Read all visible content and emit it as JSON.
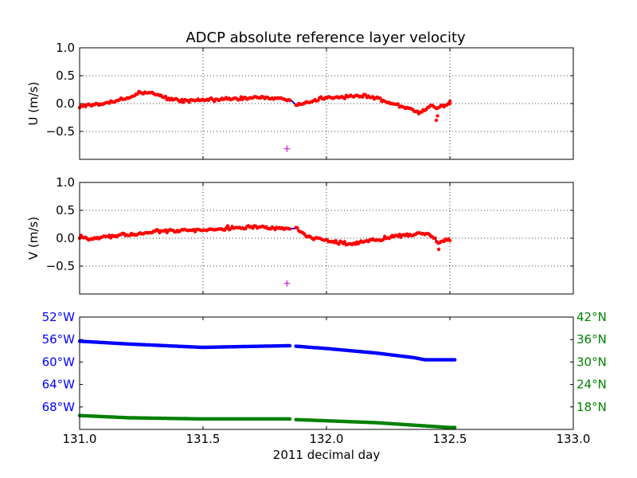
{
  "title": "ADCP absolute reference layer velocity",
  "colors": {
    "line": "#0000ff",
    "dots": "#ff0000",
    "marker": "#bf00bf",
    "lon": "#0000ff",
    "lat": "#008000",
    "grid": "#000000"
  },
  "chart_data": [
    {
      "id": "u",
      "type": "scatter",
      "ylabel": "U (m/s)",
      "xlim": [
        131.0,
        133.0
      ],
      "ylim": [
        -1.0,
        1.0
      ],
      "xticks": [
        131.0,
        131.5,
        132.0,
        132.5,
        133.0
      ],
      "yticks": [
        1.0,
        0.5,
        0.0,
        -0.5
      ],
      "ytick_labels": [
        "1.0",
        "0.5",
        "0.0",
        "−0.5"
      ],
      "grid": true,
      "series": [
        {
          "style": "line+dots",
          "x": [
            131.0,
            131.05,
            131.1,
            131.15,
            131.2,
            131.25,
            131.3,
            131.35,
            131.4,
            131.45,
            131.5,
            131.55,
            131.6,
            131.65,
            131.7,
            131.75,
            131.8,
            131.85,
            131.88,
            131.95,
            132.0,
            132.05,
            132.1,
            132.15,
            132.2,
            132.25,
            132.3,
            132.35,
            132.38,
            132.42,
            132.45,
            132.5
          ],
          "y": [
            -0.04,
            -0.03,
            0.0,
            0.05,
            0.1,
            0.21,
            0.18,
            0.1,
            0.06,
            0.05,
            0.06,
            0.07,
            0.08,
            0.09,
            0.1,
            0.1,
            0.09,
            0.07,
            -0.02,
            0.05,
            0.12,
            0.1,
            0.14,
            0.13,
            0.1,
            0.02,
            -0.05,
            -0.12,
            -0.16,
            -0.03,
            -0.08,
            0.0
          ]
        },
        {
          "style": "marker-plus",
          "x": [
            131.84
          ],
          "y": [
            -0.81
          ]
        }
      ]
    },
    {
      "id": "v",
      "type": "scatter",
      "ylabel": "V (m/s)",
      "xlim": [
        131.0,
        133.0
      ],
      "ylim": [
        -1.0,
        1.0
      ],
      "xticks": [
        131.0,
        131.5,
        132.0,
        132.5,
        133.0
      ],
      "yticks": [
        1.0,
        0.5,
        0.0,
        -0.5
      ],
      "ytick_labels": [
        "1.0",
        "0.5",
        "0.0",
        "−0.5"
      ],
      "grid": true,
      "series": [
        {
          "style": "line+dots",
          "x": [
            131.0,
            131.05,
            131.1,
            131.15,
            131.2,
            131.25,
            131.3,
            131.35,
            131.4,
            131.45,
            131.5,
            131.55,
            131.6,
            131.65,
            131.7,
            131.75,
            131.8,
            131.85,
            131.88,
            131.92,
            131.95,
            132.0,
            132.05,
            132.1,
            132.15,
            132.2,
            132.25,
            132.3,
            132.35,
            132.4,
            132.42,
            132.45,
            132.48,
            132.5
          ],
          "y": [
            0.03,
            -0.02,
            0.03,
            0.05,
            0.06,
            0.08,
            0.13,
            0.13,
            0.14,
            0.15,
            0.15,
            0.16,
            0.17,
            0.19,
            0.2,
            0.2,
            0.18,
            0.18,
            0.17,
            0.04,
            0.0,
            -0.04,
            -0.08,
            -0.1,
            -0.07,
            -0.03,
            0.01,
            0.04,
            0.07,
            0.08,
            0.07,
            -0.08,
            -0.02,
            -0.03
          ]
        },
        {
          "style": "marker-plus",
          "x": [
            131.84
          ],
          "y": [
            -0.81
          ]
        }
      ]
    },
    {
      "id": "pos",
      "type": "scatter",
      "xlabel": "2011 decimal day",
      "xlim": [
        131.0,
        133.0
      ],
      "xticks": [
        131.0,
        131.5,
        132.0,
        132.5,
        133.0
      ],
      "xtick_labels": [
        "131.0",
        "131.5",
        "132.0",
        "132.5",
        "133.0"
      ],
      "left_axis": {
        "name": "longitude",
        "ylim": [
          -52.0,
          -72.0
        ],
        "ticks": [
          -52,
          -56,
          -60,
          -64,
          -68
        ],
        "tick_labels": [
          "52°W",
          "56°W",
          "60°W",
          "64°W",
          "68°W"
        ]
      },
      "right_axis": {
        "name": "latitude",
        "ylim": [
          42.0,
          12.0
        ],
        "ticks": [
          42,
          36,
          30,
          24,
          18
        ],
        "tick_labels": [
          "42°N",
          "36°N",
          "30°N",
          "24°N",
          "18°N"
        ]
      },
      "series": [
        {
          "axis": "left",
          "x": [
            131.0,
            131.2,
            131.4,
            131.5,
            131.6,
            131.85,
            131.88,
            132.0,
            132.2,
            132.35,
            132.4,
            132.52
          ],
          "y": [
            -56.3,
            -56.8,
            -57.2,
            -57.4,
            -57.3,
            -57.1,
            -57.2,
            -57.6,
            -58.4,
            -59.2,
            -59.6,
            -59.6
          ]
        },
        {
          "axis": "right",
          "x": [
            131.0,
            131.2,
            131.5,
            131.85,
            131.88,
            132.2,
            132.5,
            132.52
          ],
          "y": [
            15.7,
            15.1,
            14.8,
            14.8,
            14.6,
            13.8,
            12.5,
            12.5
          ]
        }
      ]
    }
  ]
}
